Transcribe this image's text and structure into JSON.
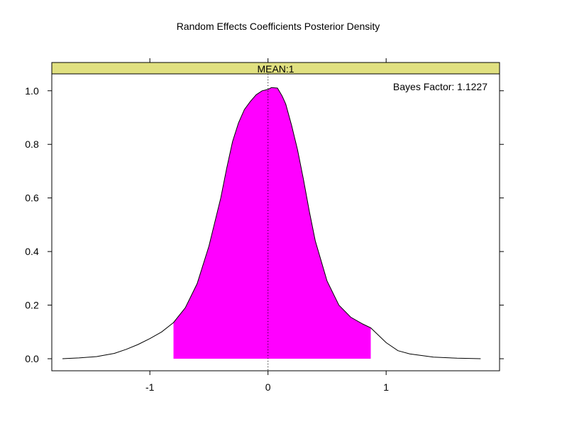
{
  "chart_data": {
    "type": "area",
    "title": "Random Effects Coefficients Posterior Density",
    "panel_label": "MEAN:1",
    "annotation": "Bayes Factor: 1.1227",
    "xlim": [
      -1.83,
      1.96
    ],
    "ylim": [
      -0.045,
      1.063
    ],
    "x_ticks": [
      -1,
      0,
      1
    ],
    "x_tick_labels": [
      "-1",
      "0",
      "1"
    ],
    "y_ticks": [
      0.0,
      0.2,
      0.4,
      0.6,
      0.8,
      1.0
    ],
    "y_tick_labels": [
      "0.0",
      "0.2",
      "0.4",
      "0.6",
      "0.8",
      "1.0"
    ],
    "reference_line_x": 0,
    "shaded_interval": [
      -0.8,
      0.87
    ],
    "density": {
      "x": [
        -1.74,
        -1.6,
        -1.45,
        -1.3,
        -1.2,
        -1.1,
        -1.0,
        -0.9,
        -0.8,
        -0.7,
        -0.6,
        -0.5,
        -0.4,
        -0.35,
        -0.3,
        -0.25,
        -0.2,
        -0.15,
        -0.1,
        -0.05,
        0.0,
        0.03,
        0.08,
        0.12,
        0.15,
        0.2,
        0.25,
        0.3,
        0.35,
        0.4,
        0.5,
        0.6,
        0.7,
        0.8,
        0.87,
        1.0,
        1.1,
        1.2,
        1.4,
        1.6,
        1.8
      ],
      "y": [
        0.0,
        0.003,
        0.008,
        0.02,
        0.035,
        0.053,
        0.075,
        0.1,
        0.135,
        0.19,
        0.28,
        0.42,
        0.6,
        0.71,
        0.81,
        0.88,
        0.93,
        0.96,
        0.985,
        1.0,
        1.005,
        1.012,
        1.01,
        0.98,
        0.95,
        0.87,
        0.78,
        0.67,
        0.55,
        0.44,
        0.29,
        0.2,
        0.155,
        0.13,
        0.115,
        0.06,
        0.03,
        0.018,
        0.006,
        0.002,
        0.0
      ]
    },
    "colors": {
      "fill": "#ff00ff",
      "strip": "#e0e080",
      "line": "#000000"
    }
  }
}
